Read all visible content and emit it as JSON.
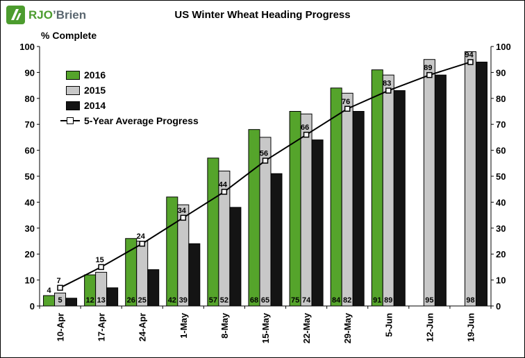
{
  "logo": {
    "brand_primary": "RJO",
    "brand_secondary": "’Brien"
  },
  "title": "US Winter Wheat Heading Progress",
  "y_axis_label": "% Complete",
  "colors": {
    "green": "#55A42B",
    "gray": "#C8C8C8",
    "black": "#141414",
    "line": "#000000"
  },
  "chart_data": {
    "type": "combo",
    "title": "US Winter Wheat Heading Progress",
    "ylabel": "% Complete",
    "xlabel": "",
    "ylim": [
      0,
      100
    ],
    "ytick_step": 10,
    "grid": false,
    "legend_position": "top-left",
    "categories": [
      "10-Apr",
      "17-Apr",
      "24-Apr",
      "1-May",
      "8-May",
      "15-May",
      "22-May",
      "29-May",
      "5-Jun",
      "12-Jun",
      "19-Jun"
    ],
    "series": [
      {
        "name": "2016",
        "type": "bar",
        "color_key": "green",
        "labels_visible": true,
        "values": [
          4,
          12,
          26,
          42,
          57,
          68,
          75,
          84,
          91,
          null,
          null
        ]
      },
      {
        "name": "2015",
        "type": "bar",
        "color_key": "gray",
        "labels_visible": true,
        "values": [
          5,
          13,
          25,
          39,
          52,
          65,
          74,
          82,
          89,
          95,
          98
        ]
      },
      {
        "name": "2014",
        "type": "bar",
        "color_key": "black",
        "labels_visible": false,
        "values": [
          3,
          7,
          14,
          24,
          38,
          51,
          64,
          75,
          83,
          89,
          94
        ]
      },
      {
        "name": "5-Year Average Progress",
        "type": "line",
        "color_key": "line",
        "labels_visible": true,
        "values": [
          7,
          15,
          24,
          34,
          44,
          56,
          66,
          76,
          83,
          89,
          94
        ]
      }
    ]
  }
}
